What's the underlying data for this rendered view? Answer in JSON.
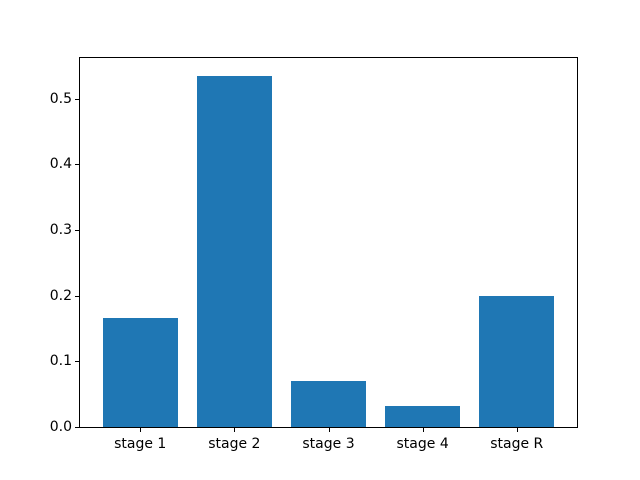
{
  "chart_data": {
    "type": "bar",
    "title": "",
    "xlabel": "",
    "ylabel": "",
    "categories": [
      "stage 1",
      "stage 2",
      "stage 3",
      "stage 4",
      "stage R"
    ],
    "values": [
      0.166,
      0.535,
      0.07,
      0.032,
      0.199
    ],
    "bar_color": "#1f77b4",
    "bar_width": 0.8,
    "xlim": [
      -0.64,
      4.64
    ],
    "ylim": [
      0,
      0.562
    ],
    "yticks": [
      0.0,
      0.1,
      0.2,
      0.3,
      0.4,
      0.5
    ],
    "ytick_labels": [
      "0.0",
      "0.1",
      "0.2",
      "0.3",
      "0.4",
      "0.5"
    ],
    "grid": false,
    "legend": "none",
    "background_color": "#ffffff",
    "axis_color": "#000000"
  }
}
